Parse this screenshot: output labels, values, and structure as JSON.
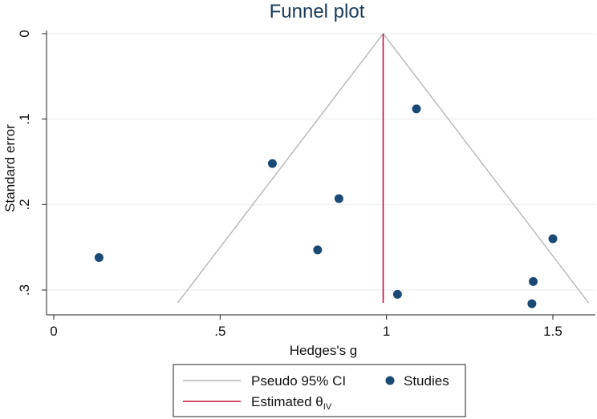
{
  "chart_data": {
    "type": "scatter",
    "title": "Funnel plot",
    "xlabel": "Hedges's g",
    "ylabel": "Standard error",
    "xlim": [
      -0.05,
      1.65
    ],
    "ylim": [
      0,
      0.32
    ],
    "y_reversed": true,
    "x_ticks": [
      {
        "value": 0,
        "label": "0"
      },
      {
        "value": 0.5,
        "label": ".5"
      },
      {
        "value": 1,
        "label": "1"
      },
      {
        "value": 1.5,
        "label": "1.5"
      }
    ],
    "y_ticks": [
      {
        "value": 0,
        "label": "0"
      },
      {
        "value": 0.1,
        "label": ".1"
      },
      {
        "value": 0.2,
        "label": ".2"
      },
      {
        "value": 0.3,
        "label": ".3"
      }
    ],
    "grid": "horizontal",
    "series": [
      {
        "name": "Studies",
        "color": "#1a4a73",
        "points": [
          {
            "x": 0.136,
            "y": 0.262
          },
          {
            "x": 0.657,
            "y": 0.152
          },
          {
            "x": 0.793,
            "y": 0.253
          },
          {
            "x": 0.857,
            "y": 0.193
          },
          {
            "x": 1.033,
            "y": 0.305
          },
          {
            "x": 1.09,
            "y": 0.088
          },
          {
            "x": 1.441,
            "y": 0.29
          },
          {
            "x": 1.437,
            "y": 0.316
          },
          {
            "x": 1.5,
            "y": 0.24
          }
        ]
      }
    ],
    "estimate": {
      "name": "Estimated θ",
      "subscript": "IV",
      "value": 0.99,
      "color": "#c0103a"
    },
    "pseudo_ci": {
      "name": "Pseudo 95% CI",
      "color": "#b5b5b5",
      "se_max": 0.315
    },
    "legend": {
      "position": "bottom"
    }
  }
}
